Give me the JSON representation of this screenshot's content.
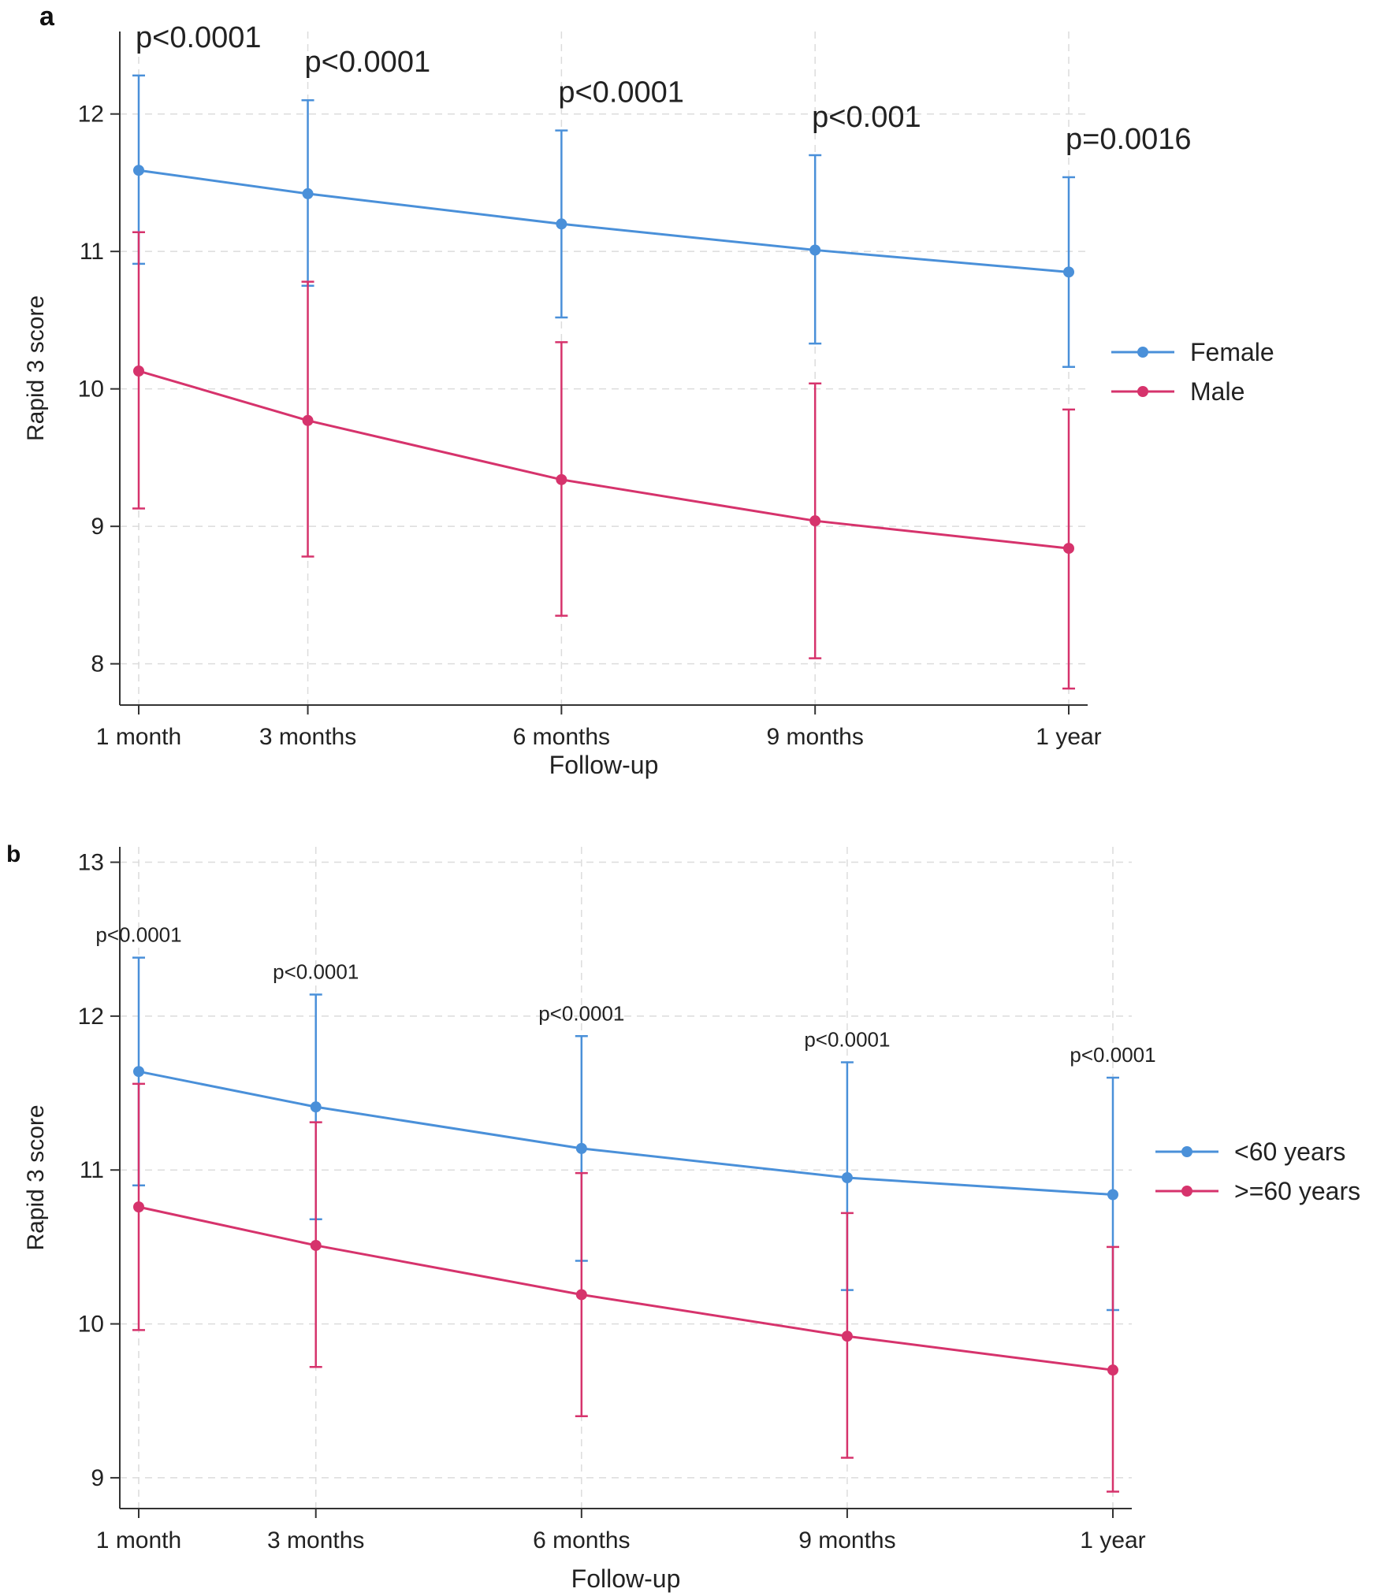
{
  "chart_data": [
    {
      "panel_label": "a",
      "type": "line",
      "xlabel": "Follow-up",
      "ylabel": "Rapid 3 score",
      "categories": [
        "1 month",
        "3 months",
        "6 months",
        "9 months",
        "1 year"
      ],
      "x": [
        1,
        3,
        6,
        9,
        12
      ],
      "ylim": [
        7.7,
        12.6
      ],
      "yticks": [
        "8",
        "9",
        "10",
        "11",
        "12"
      ],
      "grid": true,
      "legend_position": "right",
      "p_values": [
        "p<0.0001",
        "p<0.0001",
        "p<0.0001",
        "p<0.001",
        "p=0.0016"
      ],
      "series": [
        {
          "name": "Female",
          "color": "#4a90d9",
          "values": [
            11.59,
            11.42,
            11.2,
            11.01,
            10.85
          ],
          "ci_low": [
            10.91,
            10.75,
            10.52,
            10.33,
            10.16
          ],
          "ci_high": [
            12.28,
            12.1,
            11.88,
            11.7,
            11.54
          ]
        },
        {
          "name": "Male",
          "color": "#d6336c",
          "values": [
            10.13,
            9.77,
            9.34,
            9.04,
            8.84
          ],
          "ci_low": [
            9.13,
            8.78,
            8.35,
            8.04,
            7.82
          ],
          "ci_high": [
            11.14,
            10.78,
            10.34,
            10.04,
            9.85
          ]
        }
      ]
    },
    {
      "panel_label": "b",
      "type": "line",
      "xlabel": "Follow-up",
      "ylabel": "Rapid 3 score",
      "categories": [
        "1 month",
        "3 months",
        "6 months",
        "9 months",
        "1 year"
      ],
      "x": [
        1,
        3,
        6,
        9,
        12
      ],
      "ylim": [
        8.8,
        13.1
      ],
      "yticks": [
        "9",
        "10",
        "11",
        "12",
        "13"
      ],
      "grid": true,
      "legend_position": "right",
      "p_values": [
        "p<0.0001",
        "p<0.0001",
        "p<0.0001",
        "p<0.0001",
        "p<0.0001"
      ],
      "series": [
        {
          "name": "<60 years",
          "color": "#4a90d9",
          "values": [
            11.64,
            11.41,
            11.14,
            10.95,
            10.84
          ],
          "ci_low": [
            10.9,
            10.68,
            10.41,
            10.22,
            10.09
          ],
          "ci_high": [
            12.38,
            12.14,
            11.87,
            11.7,
            11.6
          ]
        },
        {
          "name": ">=60 years",
          "color": "#d6336c",
          "values": [
            10.76,
            10.51,
            10.19,
            9.92,
            9.7
          ],
          "ci_low": [
            9.96,
            9.72,
            9.4,
            9.13,
            8.91
          ],
          "ci_high": [
            11.56,
            11.31,
            10.98,
            10.72,
            10.5
          ]
        }
      ]
    }
  ]
}
